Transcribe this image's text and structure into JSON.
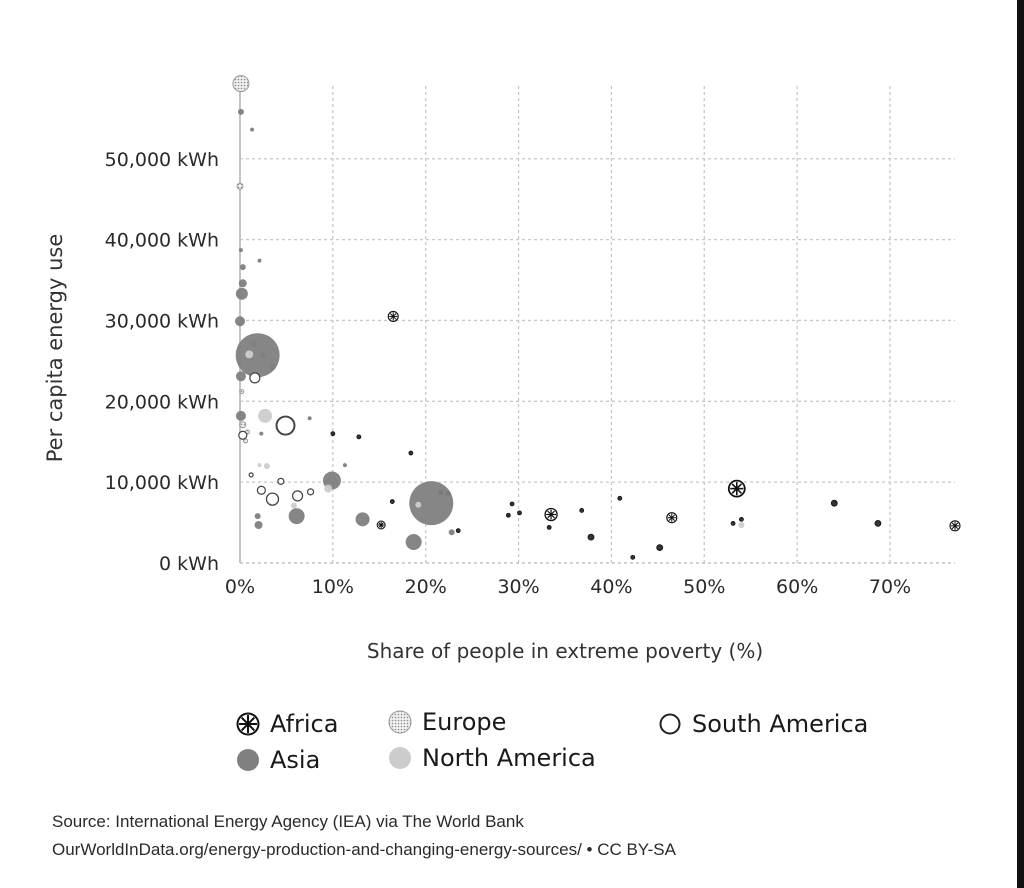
{
  "chart_data": {
    "type": "scatter",
    "title": "",
    "xlabel": "Share of people in extreme poverty (%)",
    "ylabel": "Per capita energy use",
    "xlim": [
      0,
      77
    ],
    "ylim": [
      0,
      59000
    ],
    "x_ticks": [
      0,
      10,
      20,
      30,
      40,
      50,
      60,
      70
    ],
    "x_tick_labels": [
      "0%",
      "10%",
      "20%",
      "30%",
      "40%",
      "50%",
      "60%",
      "70%"
    ],
    "y_ticks": [
      0,
      10000,
      20000,
      30000,
      40000,
      50000
    ],
    "y_tick_labels": [
      "0 kWh",
      "10,000 kWh",
      "20,000 kWh",
      "30,000 kWh",
      "40,000 kWh",
      "50,000 kWh"
    ],
    "grid": true,
    "legend_position": "bottom",
    "series": [
      {
        "name": "Africa",
        "marker": "asterisk-circle",
        "color": "#111111",
        "points": [
          {
            "x": 16.5,
            "y": 30500,
            "size": 5
          },
          {
            "x": 53.5,
            "y": 9200,
            "size": 8
          },
          {
            "x": 77,
            "y": 4600,
            "size": 5
          },
          {
            "x": 33.5,
            "y": 6000,
            "size": 6
          },
          {
            "x": 46.5,
            "y": 5600,
            "size": 5
          },
          {
            "x": 15.2,
            "y": 4700,
            "size": 4
          },
          {
            "x": 68.7,
            "y": 4900,
            "size": 3
          },
          {
            "x": 64,
            "y": 7400,
            "size": 3
          },
          {
            "x": 45.2,
            "y": 1900,
            "size": 3
          },
          {
            "x": 37.8,
            "y": 3200,
            "size": 3
          },
          {
            "x": 42.3,
            "y": 700,
            "size": 2
          },
          {
            "x": 18.4,
            "y": 13600,
            "size": 2
          },
          {
            "x": 40.9,
            "y": 8000,
            "size": 2
          },
          {
            "x": 29.3,
            "y": 7300,
            "size": 2
          },
          {
            "x": 30.1,
            "y": 6200,
            "size": 2
          },
          {
            "x": 23.5,
            "y": 4000,
            "size": 2
          },
          {
            "x": 21.6,
            "y": 8700,
            "size": 2
          },
          {
            "x": 22.4,
            "y": 8600,
            "size": 2
          },
          {
            "x": 53.1,
            "y": 4900,
            "size": 2
          },
          {
            "x": 54,
            "y": 5400,
            "size": 2
          },
          {
            "x": 33.3,
            "y": 4400,
            "size": 2
          },
          {
            "x": 28.9,
            "y": 5900,
            "size": 2
          },
          {
            "x": 36.8,
            "y": 6500,
            "size": 2
          },
          {
            "x": 12.8,
            "y": 15600,
            "size": 2
          },
          {
            "x": 10,
            "y": 16000,
            "size": 2
          },
          {
            "x": 16.4,
            "y": 7600,
            "size": 2
          }
        ]
      },
      {
        "name": "Asia",
        "marker": "filled-circle",
        "color": "#808080",
        "points": [
          {
            "x": 1.9,
            "y": 25700,
            "size": 22
          },
          {
            "x": 20.6,
            "y": 7400,
            "size": 22
          },
          {
            "x": 9.9,
            "y": 10200,
            "size": 9
          },
          {
            "x": 6.1,
            "y": 5800,
            "size": 8
          },
          {
            "x": 18.7,
            "y": 2600,
            "size": 8
          },
          {
            "x": 13.2,
            "y": 5400,
            "size": 7
          },
          {
            "x": 0.2,
            "y": 33300,
            "size": 6
          },
          {
            "x": 0.1,
            "y": 18200,
            "size": 5
          },
          {
            "x": 0.1,
            "y": 23100,
            "size": 5
          },
          {
            "x": 0.0,
            "y": 29900,
            "size": 5
          },
          {
            "x": 0.1,
            "y": 55800,
            "size": 3
          },
          {
            "x": 0.3,
            "y": 34600,
            "size": 4
          },
          {
            "x": 0.3,
            "y": 36600,
            "size": 3
          },
          {
            "x": 0.1,
            "y": 38700,
            "size": 2
          },
          {
            "x": 1.3,
            "y": 53600,
            "size": 2
          },
          {
            "x": 2.1,
            "y": 37400,
            "size": 2
          },
          {
            "x": 2,
            "y": 4700,
            "size": 4
          },
          {
            "x": 1.9,
            "y": 5800,
            "size": 3
          },
          {
            "x": 1.5,
            "y": 27200,
            "size": 3
          },
          {
            "x": 2.5,
            "y": 25700,
            "size": 3
          },
          {
            "x": 3.5,
            "y": 24200,
            "size": 3
          },
          {
            "x": 2.3,
            "y": 16000,
            "size": 2
          },
          {
            "x": 11.3,
            "y": 12100,
            "size": 2
          },
          {
            "x": 7.5,
            "y": 17900,
            "size": 2
          },
          {
            "x": 22.8,
            "y": 3800,
            "size": 3
          }
        ]
      },
      {
        "name": "Europe",
        "marker": "dotted-circle",
        "color": "#999999",
        "points": [
          {
            "x": 0.1,
            "y": 59300,
            "size": 8
          },
          {
            "x": 0.0,
            "y": 46600,
            "size": 3
          },
          {
            "x": 0.3,
            "y": 17100,
            "size": 3
          },
          {
            "x": 0.8,
            "y": 16200,
            "size": 2
          },
          {
            "x": 0.6,
            "y": 15100,
            "size": 2
          },
          {
            "x": 0.2,
            "y": 21200,
            "size": 2
          }
        ]
      },
      {
        "name": "North America",
        "marker": "filled-circle",
        "color": "#cccccc",
        "points": [
          {
            "x": 2.7,
            "y": 18200,
            "size": 7
          },
          {
            "x": 1.0,
            "y": 25800,
            "size": 4
          },
          {
            "x": 2.9,
            "y": 12000,
            "size": 3
          },
          {
            "x": 9.5,
            "y": 9200,
            "size": 4
          },
          {
            "x": 19.2,
            "y": 7200,
            "size": 3
          },
          {
            "x": 54,
            "y": 4700,
            "size": 3
          },
          {
            "x": 5.8,
            "y": 7100,
            "size": 3
          },
          {
            "x": 2.1,
            "y": 12100,
            "size": 2
          },
          {
            "x": 3.4,
            "y": 7400,
            "size": 3
          }
        ]
      },
      {
        "name": "South America",
        "marker": "open-circle",
        "color": "#444444",
        "points": [
          {
            "x": 4.9,
            "y": 17000,
            "size": 9
          },
          {
            "x": 3.5,
            "y": 7900,
            "size": 6
          },
          {
            "x": 1.6,
            "y": 22900,
            "size": 5
          },
          {
            "x": 6.2,
            "y": 8300,
            "size": 5
          },
          {
            "x": 0.3,
            "y": 15800,
            "size": 4
          },
          {
            "x": 2.3,
            "y": 9000,
            "size": 4
          },
          {
            "x": 4.4,
            "y": 10100,
            "size": 3
          },
          {
            "x": 7.6,
            "y": 8800,
            "size": 3
          },
          {
            "x": 1.2,
            "y": 10900,
            "size": 2
          }
        ]
      }
    ]
  },
  "legend": {
    "africa": "Africa",
    "asia": "Asia",
    "europe": "Europe",
    "north_america": "North America",
    "south_america": "South America"
  },
  "source": {
    "line1": "Source: International Energy Agency (IEA) via The World Bank",
    "line2": "OurWorldInData.org/energy-production-and-changing-energy-sources/ • CC BY-SA"
  }
}
